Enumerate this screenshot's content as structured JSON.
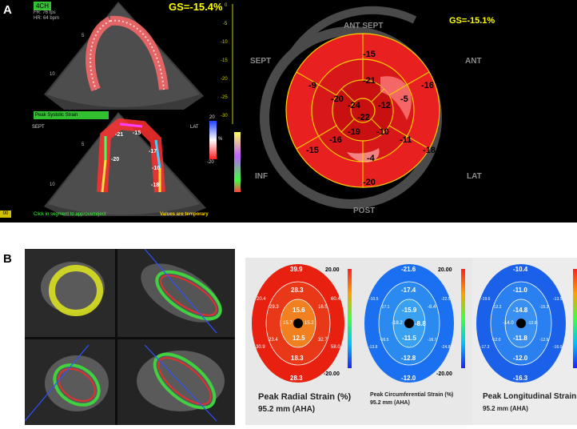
{
  "panel_a": {
    "letter": "A",
    "echo_top": {
      "view_tag": "4CH",
      "fr": "FR: 76 fps",
      "hr": "HR: 64 bpm",
      "gs": "GS=-15.4%",
      "depth_5": "5",
      "depth_10": "10"
    },
    "echo_bottom": {
      "peak_tag": "Peak Systolic Strain",
      "sept": "SEPT",
      "lat": "LAT",
      "depth_5": "5",
      "depth_10": "10",
      "seg_values": [
        "-20",
        "-21",
        "-15",
        "-17",
        "-10",
        "-18"
      ],
      "scale_top": "20",
      "scale_bottom": "-20",
      "scale_unit": "%",
      "hint": "Click in segment to approve/reject",
      "temporary": "Values are temporary",
      "corner": "00"
    },
    "side_scale": [
      "0",
      "-5",
      "-10",
      "-15",
      "-20",
      "-25",
      "-30"
    ],
    "bullseye": {
      "gs": "GS=-15.1%",
      "labels": {
        "ant_sept": "ANT SEPT",
        "ant": "ANT",
        "sept": "SEPT",
        "inf": "INF",
        "lat": "LAT",
        "post": "POST"
      },
      "outer": [
        "-15",
        "-16",
        "-18",
        "-20",
        "-15",
        "-9"
      ],
      "mid": [
        "-21",
        "-5",
        "-11",
        "-4",
        "-16",
        "-20"
      ],
      "apical": [
        "-12",
        "-10",
        "-19",
        "-24"
      ],
      "apex": "-22"
    }
  },
  "panel_b": {
    "letter": "B",
    "charts": [
      {
        "title": "Peak Radial Strain (%)",
        "subtitle": "95.2 mm (AHA)",
        "scale_max": "20.00",
        "scale_min": "-20.00",
        "outer": [
          "39.9",
          "60.4",
          "58.0",
          "28.3",
          "30.9",
          "20.4"
        ],
        "mid": [
          "28.3",
          "16.5",
          "32.7",
          "18.3",
          "23.4",
          "29.3"
        ],
        "apical": [
          "15.6",
          "15.2",
          "12.5",
          "15.7"
        ]
      },
      {
        "title": "Peak Circumferential Strain (%)",
        "subtitle": "95.2 mm (AHA)",
        "scale_max": "20.00",
        "scale_min": "-20.00",
        "outer": [
          "-21.6",
          "-22.5",
          "-24.8",
          "-12.0",
          "-13.8",
          "-10.5"
        ],
        "mid": [
          "-17.4",
          "-8.4",
          "-16.7",
          "-12.8",
          "-16.5",
          "-17.1"
        ],
        "apical": [
          "-15.9",
          "-8.8",
          "-11.5",
          "-18.2"
        ]
      },
      {
        "title": "Peak Longitudinal Strain (%)",
        "subtitle": "95.2 mm (AHA)",
        "scale_max": "",
        "scale_min": "",
        "outer": [
          "-10.4",
          "-13.5",
          "-16.0",
          "-16.3",
          "-17.3",
          "-19.6"
        ],
        "mid": [
          "-11.0",
          "-15.3",
          "-12.9",
          "-12.0",
          "-12.0",
          "-12.2"
        ],
        "apical": [
          "-14.8",
          "-12.9",
          "-11.8",
          "-14.0"
        ]
      }
    ]
  }
}
